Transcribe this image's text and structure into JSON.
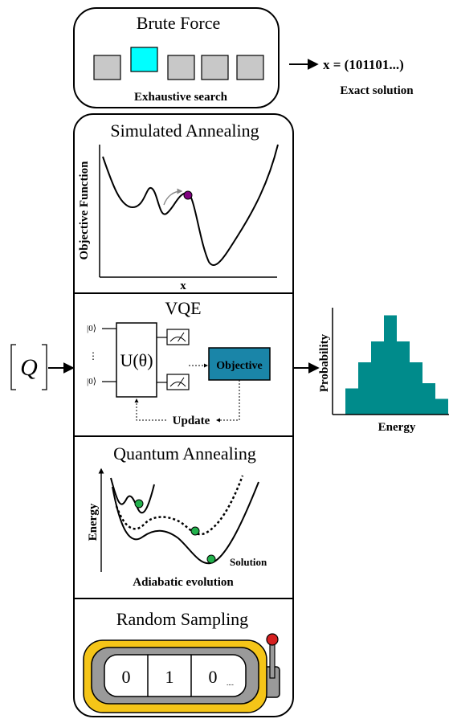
{
  "brute_force": {
    "title": "Brute Force",
    "caption": "Exhaustive search",
    "output": "x = (101101...)",
    "output_caption": "Exact solution"
  },
  "simulated_annealing": {
    "title": "Simulated Annealing",
    "ylabel": "Objective Function",
    "xlabel": "x"
  },
  "vqe": {
    "title": "VQE",
    "ket_top": "|0⟩",
    "ket_bottom": "|0⟩",
    "unitary": "U(θ)",
    "objective": "Objective",
    "update": "Update"
  },
  "input": {
    "symbol": "Q"
  },
  "histogram": {
    "xlabel": "Energy",
    "ylabel": "Probability",
    "values": [
      0.25,
      0.5,
      0.7,
      0.95,
      0.7,
      0.5,
      0.3,
      0.15
    ]
  },
  "quantum_annealing": {
    "title": "Quantum Annealing",
    "ylabel": "Energy",
    "solution": "Solution",
    "caption": "Adiabatic evolution"
  },
  "random_sampling": {
    "title": "Random Sampling",
    "reels": [
      "0",
      "1",
      "0"
    ]
  },
  "colors": {
    "cyan": "#00ffff",
    "teal": "#008b8b",
    "objective": "#1a85a8",
    "purple": "#800080",
    "green": "#22b14c",
    "yellow": "#f5c518",
    "red": "#d62020",
    "gray_box": "#c8c8c8",
    "reel_gray": "#9a9a9a"
  }
}
